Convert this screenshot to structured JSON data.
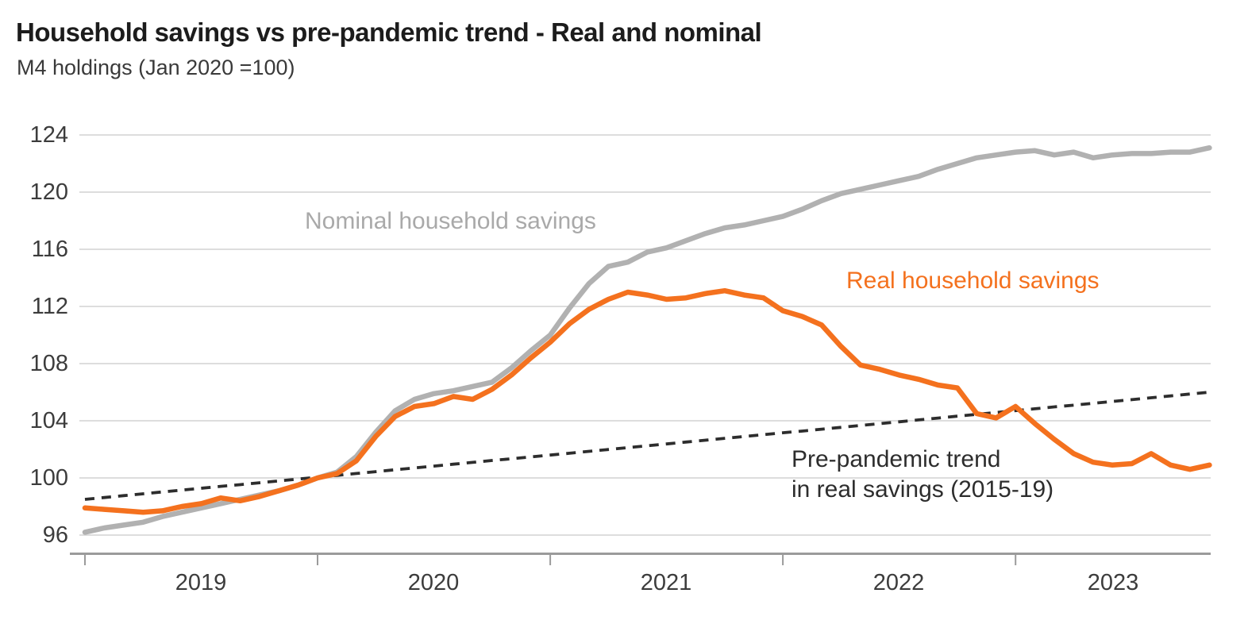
{
  "header": {
    "title": "Household savings vs pre-pandemic trend - Real and nominal",
    "subtitle": "M4 holdings (Jan 2020 =100)"
  },
  "labels": {
    "nominal": "Nominal household savings",
    "real": "Real household savings",
    "trend_line1": "Pre-pandemic trend",
    "trend_line2": "in real savings (2015-19)"
  },
  "chart_data": {
    "type": "line",
    "title": "Household savings vs pre-pandemic trend - Real and nominal",
    "subtitle": "M4 holdings (Jan 2020 =100)",
    "grid": "horizontal",
    "legend_position": "inline-annotations",
    "y_ticks": [
      96,
      100,
      104,
      108,
      112,
      116,
      120,
      124
    ],
    "ylim": [
      94.5,
      125
    ],
    "x_tick_labels": [
      "2019",
      "2020",
      "2021",
      "2022",
      "2023"
    ],
    "x": [
      "2019-01",
      "2019-02",
      "2019-03",
      "2019-04",
      "2019-05",
      "2019-06",
      "2019-07",
      "2019-08",
      "2019-09",
      "2019-10",
      "2019-11",
      "2019-12",
      "2020-01",
      "2020-02",
      "2020-03",
      "2020-04",
      "2020-05",
      "2020-06",
      "2020-07",
      "2020-08",
      "2020-09",
      "2020-10",
      "2020-11",
      "2020-12",
      "2021-01",
      "2021-02",
      "2021-03",
      "2021-04",
      "2021-05",
      "2021-06",
      "2021-07",
      "2021-08",
      "2021-09",
      "2021-10",
      "2021-11",
      "2021-12",
      "2022-01",
      "2022-02",
      "2022-03",
      "2022-04",
      "2022-05",
      "2022-06",
      "2022-07",
      "2022-08",
      "2022-09",
      "2022-10",
      "2022-11",
      "2022-12",
      "2023-01",
      "2023-02",
      "2023-03",
      "2023-04",
      "2023-05",
      "2023-06",
      "2023-07",
      "2023-08",
      "2023-09",
      "2023-10",
      "2023-11"
    ],
    "colors": {
      "grid": "#d2d2d2",
      "axis": "#9b9b9b",
      "nominal": "#b1b1b1",
      "real": "#f4711e",
      "trend": "#2d2d2d"
    },
    "series": [
      {
        "id": "nominal",
        "name": "Nominal household savings",
        "color": "#b1b1b1",
        "style": "solid",
        "values": [
          96.2,
          96.5,
          96.7,
          96.9,
          97.3,
          97.6,
          97.9,
          98.2,
          98.5,
          98.8,
          99.1,
          99.5,
          100.0,
          100.4,
          101.5,
          103.2,
          104.7,
          105.5,
          105.9,
          106.1,
          106.4,
          106.7,
          107.7,
          108.9,
          110.0,
          111.9,
          113.6,
          114.8,
          115.1,
          115.8,
          116.1,
          116.6,
          117.1,
          117.5,
          117.7,
          118.0,
          118.3,
          118.8,
          119.4,
          119.9,
          120.2,
          120.5,
          120.8,
          121.1,
          121.6,
          122.0,
          122.4,
          122.6,
          122.8,
          122.9,
          122.6,
          122.8,
          122.4,
          122.6,
          122.7,
          122.7,
          122.8,
          122.8,
          123.1
        ]
      },
      {
        "id": "real",
        "name": "Real household savings",
        "color": "#f4711e",
        "style": "solid",
        "values": [
          97.9,
          97.8,
          97.7,
          97.6,
          97.7,
          98.0,
          98.2,
          98.6,
          98.4,
          98.7,
          99.1,
          99.5,
          100.0,
          100.3,
          101.2,
          102.9,
          104.3,
          105.0,
          105.2,
          105.7,
          105.5,
          106.2,
          107.2,
          108.4,
          109.5,
          110.8,
          111.8,
          112.5,
          113.0,
          112.8,
          112.5,
          112.6,
          112.9,
          113.1,
          112.8,
          112.6,
          111.7,
          111.3,
          110.7,
          109.2,
          107.9,
          107.6,
          107.2,
          106.9,
          106.5,
          106.3,
          104.5,
          104.2,
          105.0,
          103.8,
          102.7,
          101.7,
          101.1,
          100.9,
          101.0,
          101.7,
          100.9,
          100.6,
          100.9
        ]
      },
      {
        "id": "trend",
        "name": "Pre-pandemic trend in real savings (2015-19)",
        "color": "#2d2d2d",
        "style": "dashed",
        "shape": "linear",
        "values": [
          98.5,
          98.63,
          98.76,
          98.89,
          99.02,
          99.15,
          99.28,
          99.41,
          99.53,
          99.66,
          99.79,
          99.92,
          100.05,
          100.18,
          100.31,
          100.44,
          100.57,
          100.7,
          100.83,
          100.96,
          101.09,
          101.22,
          101.34,
          101.47,
          101.6,
          101.73,
          101.86,
          101.99,
          102.12,
          102.25,
          102.38,
          102.51,
          102.64,
          102.77,
          102.9,
          103.03,
          103.16,
          103.28,
          103.41,
          103.54,
          103.67,
          103.8,
          103.93,
          104.06,
          104.19,
          104.32,
          104.45,
          104.58,
          104.71,
          104.84,
          104.97,
          105.09,
          105.22,
          105.35,
          105.48,
          105.61,
          105.74,
          105.87,
          106.0
        ]
      }
    ]
  }
}
